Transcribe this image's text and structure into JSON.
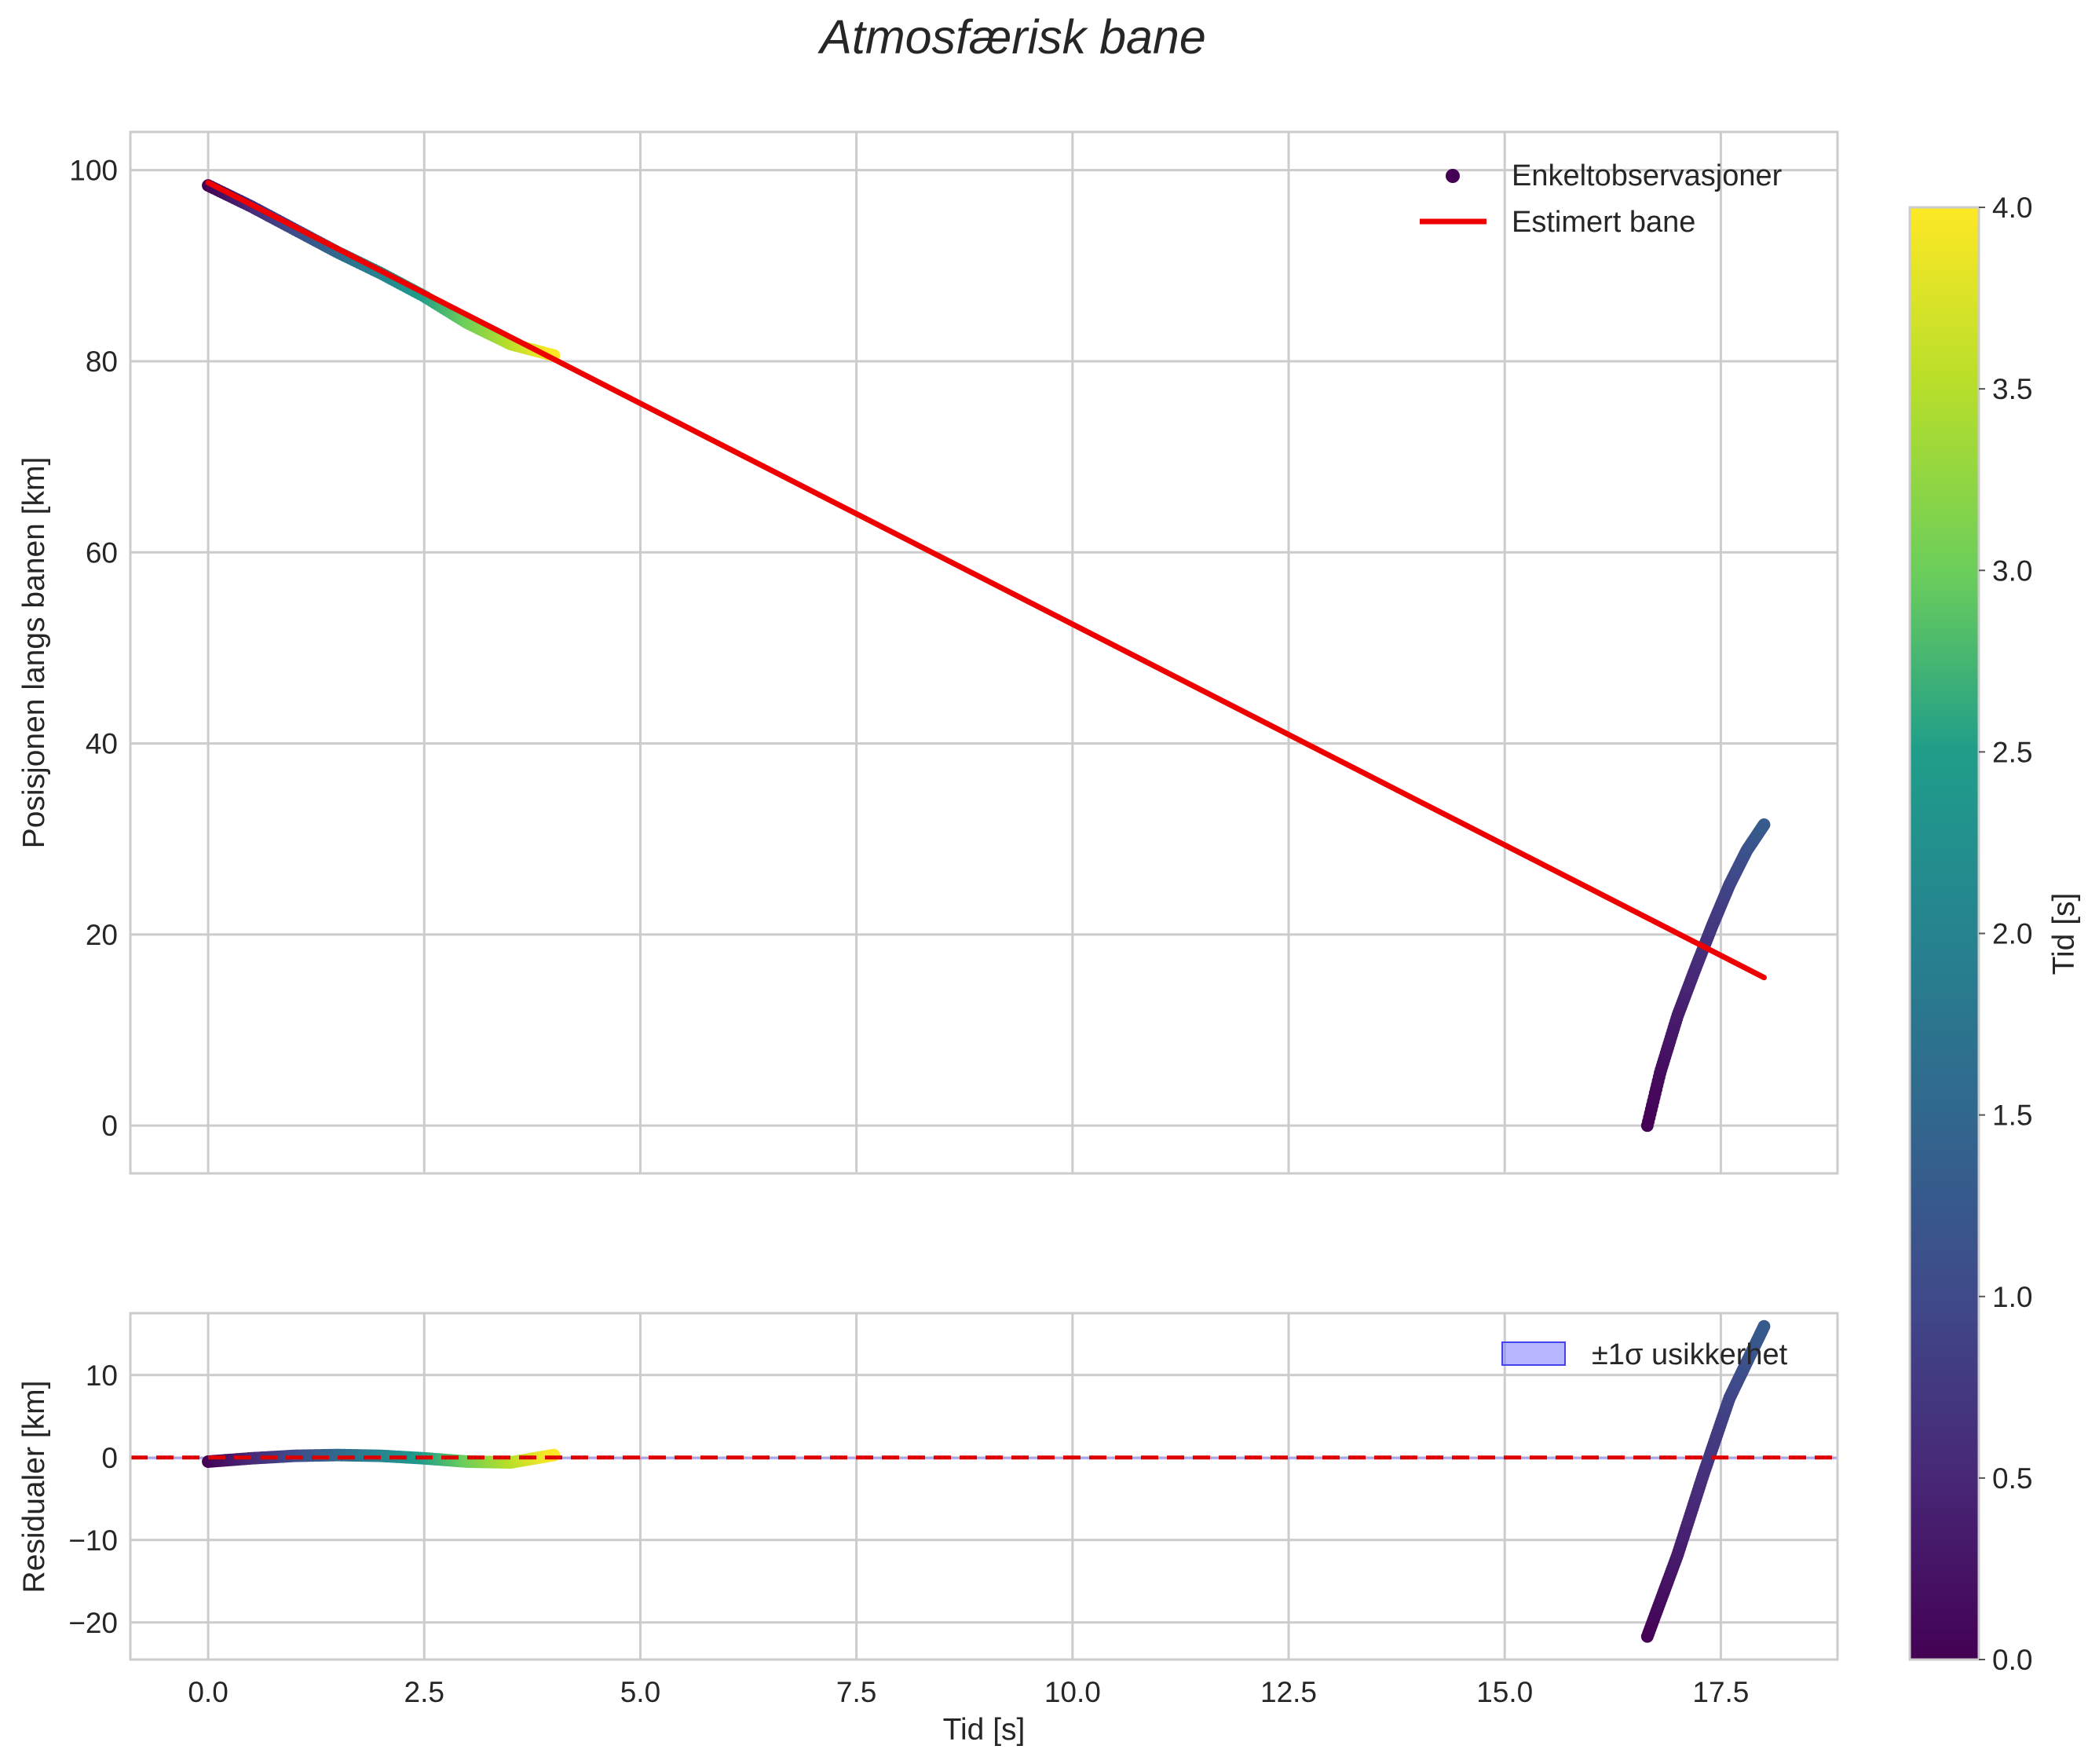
{
  "chart_data": [
    {
      "type": "scatter",
      "title": "Atmosfærisk bane",
      "xlabel": "",
      "ylabel": "Posisjonen langs banen [km]",
      "xlim": [
        -0.9,
        18.85
      ],
      "ylim": [
        -5,
        104
      ],
      "x_ticks": [
        0,
        2.5,
        5,
        7.5,
        10,
        12.5,
        15,
        17.5
      ],
      "y_ticks": [
        0,
        20,
        40,
        60,
        80,
        100
      ],
      "grid": true,
      "legend_position": "top-right",
      "legend": [
        "Enkeltobservasjoner",
        "Estimert bane"
      ],
      "series": [
        {
          "name": "Enkeltobservasjoner",
          "kind": "scatter",
          "color_by": "time",
          "segments": [
            {
              "x_range": [
                0.0,
                4.0
              ],
              "points": [
                [
                  0.0,
                  98.4
                ],
                [
                  0.5,
                  96.2
                ],
                [
                  1.0,
                  93.8
                ],
                [
                  1.5,
                  91.4
                ],
                [
                  2.0,
                  89.2
                ],
                [
                  2.5,
                  86.8
                ],
                [
                  3.0,
                  84.0
                ],
                [
                  3.5,
                  81.8
                ],
                [
                  4.0,
                  80.6
                ]
              ]
            },
            {
              "x_range": [
                16.65,
                18.0
              ],
              "t_range": [
                0.0,
                1.3
              ],
              "points": [
                [
                  16.65,
                  0.0
                ],
                [
                  16.8,
                  5.6
                ],
                [
                  17.0,
                  11.5
                ],
                [
                  17.2,
                  16.3
                ],
                [
                  17.4,
                  20.9
                ],
                [
                  17.6,
                  25.2
                ],
                [
                  17.8,
                  28.8
                ],
                [
                  18.0,
                  31.5
                ]
              ]
            }
          ]
        },
        {
          "name": "Estimert bane",
          "kind": "line",
          "color": "#ee0000",
          "x": [
            0.0,
            18.0
          ],
          "y": [
            98.7,
            15.5
          ]
        }
      ]
    },
    {
      "type": "scatter",
      "title": "",
      "xlabel": "Tid [s]",
      "ylabel": "Residualer [km]",
      "xlim": [
        -0.9,
        18.85
      ],
      "ylim": [
        -24.5,
        17.5
      ],
      "x_ticks": [
        0,
        2.5,
        5,
        7.5,
        10,
        12.5,
        15,
        17.5
      ],
      "x_tick_labels": [
        "0.0",
        "2.5",
        "5.0",
        "7.5",
        "10.0",
        "12.5",
        "15.0",
        "17.5"
      ],
      "y_ticks": [
        -20,
        -10,
        0,
        10
      ],
      "y_tick_labels": [
        "−20",
        "−10",
        "0",
        "10"
      ],
      "grid": true,
      "legend_position": "top-right",
      "legend": [
        "±1σ usikkerhet"
      ],
      "zero_line": {
        "y": 0,
        "style": "dashed",
        "color": "#dd0000"
      },
      "uncertainty_band": {
        "color": "#7b7bff",
        "sigma": 0.05
      },
      "series": [
        {
          "name": "residuals",
          "kind": "scatter",
          "color_by": "time",
          "segments": [
            {
              "x_range": [
                0.0,
                4.0
              ],
              "points": [
                [
                  0.0,
                  -0.5
                ],
                [
                  0.5,
                  -0.1
                ],
                [
                  1.0,
                  0.2
                ],
                [
                  1.5,
                  0.3
                ],
                [
                  2.0,
                  0.2
                ],
                [
                  2.5,
                  -0.1
                ],
                [
                  3.0,
                  -0.5
                ],
                [
                  3.5,
                  -0.6
                ],
                [
                  4.0,
                  0.3
                ]
              ]
            },
            {
              "x_range": [
                16.65,
                18.0
              ],
              "t_range": [
                0.0,
                1.3
              ],
              "points": [
                [
                  16.65,
                  -21.7
                ],
                [
                  17.0,
                  -11.8
                ],
                [
                  17.3,
                  -2.0
                ],
                [
                  17.6,
                  7.2
                ],
                [
                  18.0,
                  15.9
                ]
              ]
            }
          ]
        }
      ]
    }
  ],
  "colorbar": {
    "label": "Tid [s]",
    "range": [
      0.0,
      4.0
    ],
    "ticks": [
      "0.0",
      "0.5",
      "1.0",
      "1.5",
      "2.0",
      "2.5",
      "3.0",
      "3.5",
      "4.0"
    ],
    "colormap": "viridis",
    "colors": [
      "#440154",
      "#482777",
      "#3f4a8a",
      "#31678e",
      "#26838f",
      "#1f9d8a",
      "#6cce5a",
      "#b6de2b",
      "#fee825"
    ]
  },
  "colors": {
    "estimate": "#ee0000",
    "zero_line": "#dd0000",
    "band": "#7b7bff",
    "grid": "#cccccc",
    "frame": "#cccccc"
  }
}
